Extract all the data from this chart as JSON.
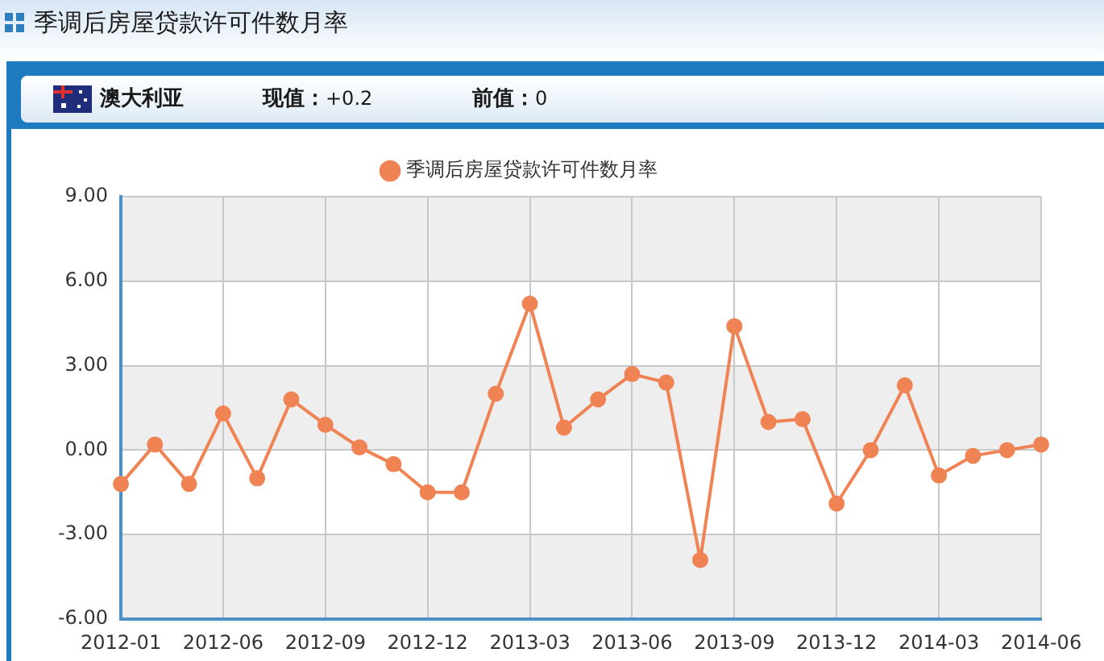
{
  "chart_data": {
    "type": "line",
    "title": "季调后房屋贷款许可件数月率",
    "subtitle": "澳大利亚",
    "annotations": [
      "现值：+0.2",
      "前值：0"
    ],
    "categories": [
      "2012-01",
      null,
      null,
      "2012-06",
      null,
      null,
      "2012-09",
      null,
      null,
      "2012-12",
      null,
      null,
      "2013-03",
      null,
      null,
      "2013-06",
      null,
      null,
      "2013-09",
      null,
      null,
      "2013-12",
      null,
      null,
      "2014-03",
      null,
      null,
      "2014-06"
    ],
    "series": [
      {
        "name": "季调后房屋贷款许可件数月率",
        "color": "#ef8354",
        "values": [
          -1.2,
          0.2,
          -1.2,
          1.3,
          -1.0,
          1.8,
          0.9,
          0.1,
          -0.5,
          -1.5,
          -1.5,
          2.0,
          5.2,
          0.8,
          1.8,
          2.7,
          2.4,
          -3.9,
          4.4,
          1.0,
          1.1,
          -1.9,
          0.0,
          2.3,
          -0.9,
          -0.2,
          0.0,
          0.2
        ]
      }
    ],
    "ylim": [
      -6,
      9
    ],
    "yticks": [
      {
        "value": -6,
        "label": "-6.00"
      },
      {
        "value": -3,
        "label": "-3.00"
      },
      {
        "value": 0,
        "label": "0.00"
      },
      {
        "value": 3,
        "label": "3.00"
      },
      {
        "value": 6,
        "label": "6.00"
      },
      {
        "value": 9,
        "label": "9.00"
      }
    ],
    "bands": [
      {
        "axis": "y",
        "from": 6,
        "to": 9,
        "color": "#eeeeee"
      },
      {
        "axis": "y",
        "from": 0,
        "to": 3,
        "color": "#eeeeee"
      },
      {
        "axis": "y",
        "from": -6,
        "to": -3,
        "color": "#eeeeee"
      }
    ],
    "grid": true,
    "legend": "top",
    "marker": "circle"
  }
}
